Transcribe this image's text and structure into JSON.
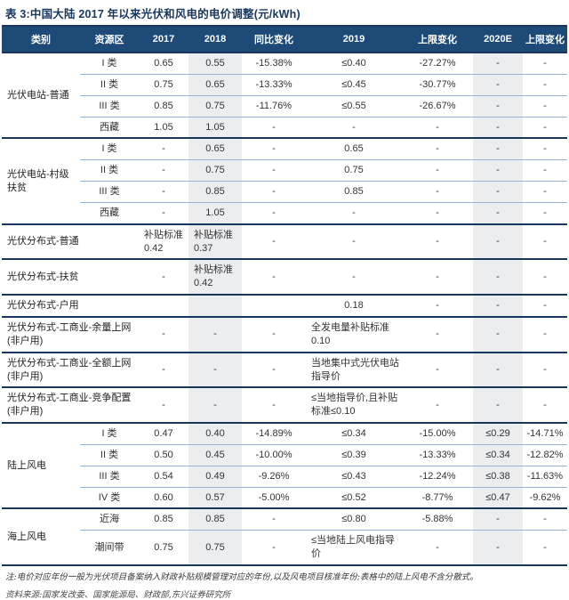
{
  "title": "表 3:中国大陆 2017 年以来光伏和风电的电价调整(元/kWh)",
  "unit": "元/kWh",
  "colors": {
    "header_bg": "#1e4a78",
    "section_border": "#17375e",
    "row_border": "#93b5d8",
    "shaded_column_bg": "#ebedef",
    "title_text": "#17375e"
  },
  "columns": [
    "类别",
    "资源区",
    "2017",
    "2018",
    "同比变化",
    "2019",
    "上限变化",
    "2020E",
    "上限变化"
  ],
  "shaded_columns": [
    "2018",
    "2020E"
  ],
  "sections": [
    {
      "category": "光伏电站-普通",
      "merged_label": false,
      "rows": [
        {
          "zone": "I 类",
          "cells": [
            "0.65",
            "0.55",
            "-15.38%",
            "≤0.40",
            "-27.27%",
            "-",
            "-"
          ]
        },
        {
          "zone": "II 类",
          "cells": [
            "0.75",
            "0.65",
            "-13.33%",
            "≤0.45",
            "-30.77%",
            "-",
            "-"
          ]
        },
        {
          "zone": "III 类",
          "cells": [
            "0.85",
            "0.75",
            "-11.76%",
            "≤0.55",
            "-26.67%",
            "-",
            "-"
          ]
        },
        {
          "zone": "西藏",
          "cells": [
            "1.05",
            "1.05",
            "-",
            "-",
            "-",
            "-",
            "-"
          ]
        }
      ]
    },
    {
      "category": "光伏电站-村级扶贫",
      "merged_label": false,
      "rows": [
        {
          "zone": "I 类",
          "cells": [
            "-",
            "0.65",
            "-",
            "0.65",
            "-",
            "-",
            "-"
          ]
        },
        {
          "zone": "II 类",
          "cells": [
            "-",
            "0.75",
            "-",
            "0.75",
            "-",
            "-",
            "-"
          ]
        },
        {
          "zone": "III 类",
          "cells": [
            "-",
            "0.85",
            "-",
            "0.85",
            "-",
            "-",
            "-"
          ]
        },
        {
          "zone": "西藏",
          "cells": [
            "-",
            "1.05",
            "-",
            "-",
            "-",
            "-",
            "-"
          ]
        }
      ]
    },
    {
      "category": "光伏分布式-普通",
      "merged_label": true,
      "rows": [
        {
          "zone": "",
          "cells": [
            "补贴标准 0.42",
            "补贴标准 0.37",
            "-",
            "-",
            "-",
            "-",
            "-"
          ]
        }
      ]
    },
    {
      "category": "光伏分布式-扶贫",
      "merged_label": true,
      "rows": [
        {
          "zone": "",
          "cells": [
            "-",
            "补贴标准 0.42",
            "-",
            "-",
            "-",
            "-",
            "-"
          ]
        }
      ]
    },
    {
      "category": "光伏分布式-户用",
      "merged_label": true,
      "rows": [
        {
          "zone": "",
          "cells": [
            "",
            "",
            "",
            "0.18",
            "-",
            "-",
            "-"
          ]
        }
      ]
    },
    {
      "category": "光伏分布式-工商业-余量上网(非户用)",
      "merged_label": true,
      "rows": [
        {
          "zone": "",
          "cells": [
            "-",
            "-",
            "-",
            "全发电量补贴标准 0.10",
            "-",
            "-",
            "-"
          ]
        }
      ]
    },
    {
      "category": "光伏分布式-工商业-全额上网(非户用)",
      "merged_label": true,
      "rows": [
        {
          "zone": "",
          "cells": [
            "-",
            "-",
            "-",
            "当地集中式光伏电站指导价",
            "-",
            "-",
            "-"
          ]
        }
      ]
    },
    {
      "category": "光伏分布式-工商业-竞争配置(非户用)",
      "merged_label": true,
      "rows": [
        {
          "zone": "",
          "cells": [
            "-",
            "-",
            "-",
            "≤当地指导价,且补贴标准≤0.10",
            "-",
            "-",
            "-"
          ]
        }
      ]
    },
    {
      "category": "陆上风电",
      "merged_label": false,
      "rows": [
        {
          "zone": "I 类",
          "cells": [
            "0.47",
            "0.40",
            "-14.89%",
            "≤0.34",
            "-15.00%",
            "≤0.29",
            "-14.71%"
          ]
        },
        {
          "zone": "II 类",
          "cells": [
            "0.50",
            "0.45",
            "-10.00%",
            "≤0.39",
            "-13.33%",
            "≤0.34",
            "-12.82%"
          ]
        },
        {
          "zone": "III 类",
          "cells": [
            "0.54",
            "0.49",
            "-9.26%",
            "≤0.43",
            "-12.24%",
            "≤0.38",
            "-11.63%"
          ]
        },
        {
          "zone": "IV 类",
          "cells": [
            "0.60",
            "0.57",
            "-5.00%",
            "≤0.52",
            "-8.77%",
            "≤0.47",
            "-9.62%"
          ]
        }
      ]
    },
    {
      "category": "海上风电",
      "merged_label": false,
      "rows": [
        {
          "zone": "近海",
          "cells": [
            "0.85",
            "0.85",
            "-",
            "≤0.80",
            "-5.88%",
            "-",
            "-"
          ]
        },
        {
          "zone": "潮间带",
          "cells": [
            "0.75",
            "0.75",
            "-",
            "≤当地陆上风电指导价",
            "-",
            "-",
            "-"
          ]
        }
      ]
    }
  ],
  "notes": {
    "note": "注:电价对应年份一般为光伏项目备案纳入财政补贴规模管理对应的年份,以及风电项目核准年份;表格中的陆上风电不含分散式。",
    "source": "资料来源:国家发改委、国家能源局、财政部,东兴证券研究所"
  }
}
